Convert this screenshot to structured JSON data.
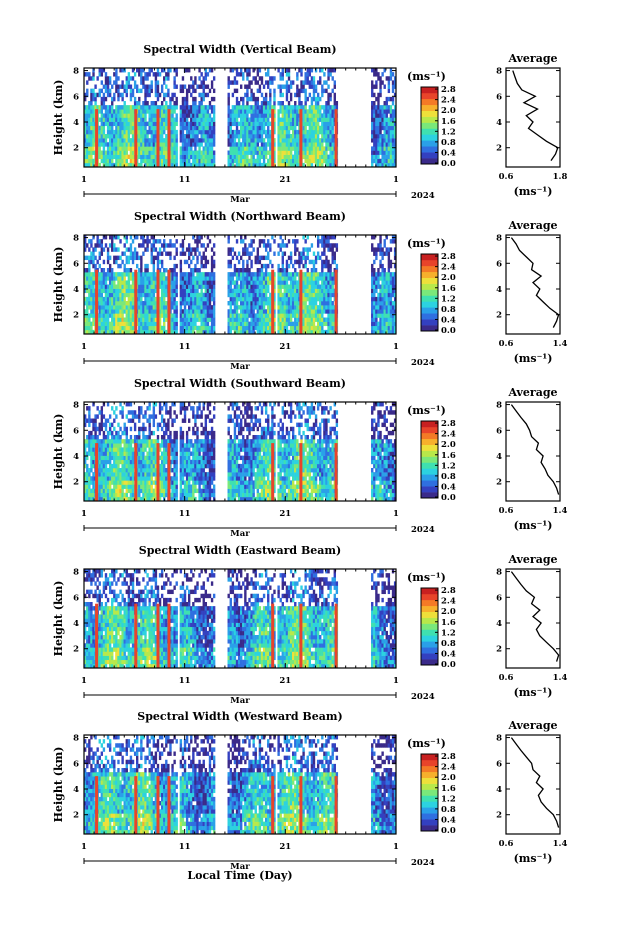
{
  "figure": {
    "x_axis_label": "Local Time (Day)",
    "month_label": "Mar",
    "year_label": "2024",
    "height_label": "Height (km)",
    "unit_label": "(ms⁻¹)",
    "average_title": "Average"
  },
  "colormap": [
    "#3a2a8a",
    "#3340c0",
    "#2f6fe0",
    "#2aa0e8",
    "#2cd2e0",
    "#3fe0b0",
    "#7ae87a",
    "#b8e84a",
    "#eee03a",
    "#f7b02c",
    "#f47a26",
    "#e8442a",
    "#c82020"
  ],
  "chart_data": [
    {
      "type": "heatmap",
      "title": "Spectral Width (Vertical Beam)",
      "x_ticks": [
        "1",
        "11",
        "21",
        "1"
      ],
      "y_ticks": [
        "2",
        "4",
        "6",
        "8"
      ],
      "ylim": [
        0.5,
        8.2
      ],
      "colorbar_ticks": [
        "0.0",
        "0.4",
        "0.8",
        "1.2",
        "1.6",
        "2.0",
        "2.4",
        "2.8"
      ],
      "data_gaps_days": [
        [
          9.2,
          9.5
        ],
        [
          13.1,
          14.2
        ],
        [
          19.0,
          19.3
        ],
        [
          25.3,
          28.6
        ]
      ],
      "average": {
        "title": "Average",
        "xlim": [
          0.6,
          1.8
        ],
        "x_ticks": [
          "0.6",
          "1.8"
        ],
        "y_ticks": [
          "2",
          "4",
          "6",
          "8"
        ],
        "heights_km": [
          1.0,
          1.5,
          2.0,
          2.5,
          3.0,
          3.5,
          4.0,
          4.5,
          5.0,
          5.5,
          6.0,
          6.5,
          7.0,
          7.5,
          8.0
        ],
        "values": [
          1.6,
          1.7,
          1.75,
          1.5,
          1.3,
          1.1,
          1.2,
          1.05,
          1.3,
          1.0,
          1.25,
          0.95,
          0.85,
          0.8,
          0.75
        ]
      }
    },
    {
      "type": "heatmap",
      "title": "Spectral Width (Northward Beam)",
      "x_ticks": [
        "1",
        "11",
        "21",
        "1"
      ],
      "y_ticks": [
        "2",
        "4",
        "6",
        "8"
      ],
      "ylim": [
        0.5,
        8.2
      ],
      "colorbar_ticks": [
        "0.0",
        "0.4",
        "0.8",
        "1.2",
        "1.6",
        "2.0",
        "2.4",
        "2.8"
      ],
      "data_gaps_days": [
        [
          9.2,
          9.5
        ],
        [
          13.0,
          14.2
        ],
        [
          19.0,
          19.3
        ],
        [
          25.3,
          28.6
        ]
      ],
      "average": {
        "title": "Average",
        "xlim": [
          0.6,
          1.4
        ],
        "x_ticks": [
          "0.6",
          "1.4"
        ],
        "y_ticks": [
          "2",
          "4",
          "6",
          "8"
        ],
        "heights_km": [
          1.0,
          1.5,
          2.0,
          2.5,
          3.0,
          3.5,
          4.0,
          4.5,
          5.0,
          5.5,
          6.0,
          6.5,
          7.0,
          7.5,
          8.0
        ],
        "values": [
          1.3,
          1.35,
          1.38,
          1.25,
          1.15,
          1.05,
          1.1,
          1.0,
          1.12,
          0.98,
          1.0,
          0.9,
          0.8,
          0.75,
          0.68
        ]
      }
    },
    {
      "type": "heatmap",
      "title": "Spectral Width (Southward Beam)",
      "x_ticks": [
        "1",
        "11",
        "21",
        "1"
      ],
      "y_ticks": [
        "2",
        "4",
        "6",
        "8"
      ],
      "ylim": [
        0.5,
        8.2
      ],
      "colorbar_ticks": [
        "0.0",
        "0.4",
        "0.8",
        "1.2",
        "1.6",
        "2.0",
        "2.4",
        "2.8"
      ],
      "data_gaps_days": [
        [
          9.2,
          9.5
        ],
        [
          13.0,
          14.2
        ],
        [
          19.0,
          19.3
        ],
        [
          25.3,
          28.6
        ]
      ],
      "average": {
        "title": "Average",
        "xlim": [
          0.6,
          1.4
        ],
        "x_ticks": [
          "0.6",
          "1.4"
        ],
        "y_ticks": [
          "2",
          "4",
          "6",
          "8"
        ],
        "heights_km": [
          1.0,
          1.5,
          2.0,
          2.5,
          3.0,
          3.5,
          4.0,
          4.5,
          5.0,
          5.5,
          6.0,
          6.5,
          7.0,
          7.5,
          8.0
        ],
        "values": [
          1.38,
          1.35,
          1.3,
          1.22,
          1.18,
          1.12,
          1.15,
          1.05,
          1.08,
          0.98,
          0.95,
          0.9,
          0.82,
          0.75,
          0.68
        ]
      }
    },
    {
      "type": "heatmap",
      "title": "Spectral Width (Eastward Beam)",
      "x_ticks": [
        "1",
        "11",
        "21",
        "1"
      ],
      "y_ticks": [
        "2",
        "4",
        "6",
        "8"
      ],
      "ylim": [
        0.5,
        8.2
      ],
      "colorbar_ticks": [
        "0.0",
        "0.4",
        "0.8",
        "1.2",
        "1.6",
        "2.0",
        "2.4",
        "2.8"
      ],
      "data_gaps_days": [
        [
          9.2,
          9.5
        ],
        [
          13.0,
          14.2
        ],
        [
          19.0,
          19.3
        ],
        [
          25.3,
          28.6
        ]
      ],
      "average": {
        "title": "Average",
        "xlim": [
          0.6,
          1.4
        ],
        "x_ticks": [
          "0.6",
          "1.4"
        ],
        "y_ticks": [
          "2",
          "4",
          "6",
          "8"
        ],
        "heights_km": [
          1.0,
          1.5,
          2.0,
          2.5,
          3.0,
          3.5,
          4.0,
          4.5,
          5.0,
          5.5,
          6.0,
          6.5,
          7.0,
          7.5,
          8.0
        ],
        "values": [
          1.35,
          1.38,
          1.3,
          1.2,
          1.1,
          1.05,
          1.12,
          1.0,
          1.1,
          0.98,
          1.02,
          0.9,
          0.82,
          0.75,
          0.68
        ]
      }
    },
    {
      "type": "heatmap",
      "title": "Spectral Width (Westward Beam)",
      "x_ticks": [
        "1",
        "11",
        "21",
        "1"
      ],
      "y_ticks": [
        "2",
        "4",
        "6",
        "8"
      ],
      "ylim": [
        0.5,
        8.2
      ],
      "colorbar_ticks": [
        "0.0",
        "0.4",
        "0.8",
        "1.2",
        "1.6",
        "2.0",
        "2.4",
        "2.8"
      ],
      "data_gaps_days": [
        [
          9.2,
          9.5
        ],
        [
          13.0,
          14.2
        ],
        [
          19.0,
          19.3
        ],
        [
          25.3,
          28.6
        ]
      ],
      "average": {
        "title": "Average",
        "xlim": [
          0.6,
          1.4
        ],
        "x_ticks": [
          "0.6",
          "1.4"
        ],
        "y_ticks": [
          "2",
          "4",
          "6",
          "8"
        ],
        "heights_km": [
          1.0,
          1.5,
          2.0,
          2.5,
          3.0,
          3.5,
          4.0,
          4.5,
          5.0,
          5.5,
          6.0,
          6.5,
          7.0,
          7.5,
          8.0
        ],
        "values": [
          1.38,
          1.35,
          1.3,
          1.2,
          1.12,
          1.08,
          1.15,
          1.05,
          1.1,
          1.0,
          0.98,
          0.9,
          0.82,
          0.75,
          0.68
        ]
      }
    }
  ]
}
